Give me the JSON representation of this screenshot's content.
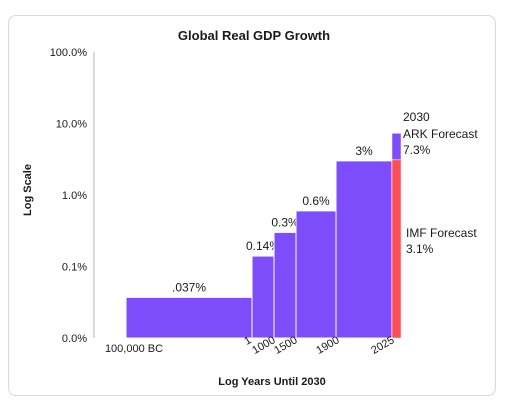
{
  "chart_data": {
    "type": "bar",
    "title": "Global Real GDP Growth",
    "xlabel": "Log Years Until 2030",
    "ylabel": "Log Scale",
    "y_scale": "log",
    "ylim": [
      "0.0%",
      "100.0%"
    ],
    "y_ticks": [
      "100.0%",
      "10.0%",
      "1.0%",
      "0.1%",
      "0.0%"
    ],
    "x_ticks": [
      "100,000 BC",
      "1",
      "1000",
      "1500",
      "1900",
      "2025"
    ],
    "periods": [
      {
        "from": "100,000 BC",
        "to": "1",
        "value": 0.037,
        "label": ".037%"
      },
      {
        "from": "1",
        "to": "1000",
        "value": 0.14,
        "label": "0.14%"
      },
      {
        "from": "1000",
        "to": "1500",
        "value": 0.3,
        "label": "0.3%"
      },
      {
        "from": "1500",
        "to": "1900",
        "value": 0.6,
        "label": "0.6%"
      },
      {
        "from": "1900",
        "to": "2025",
        "value": 3,
        "label": "3%"
      }
    ],
    "forecasts": {
      "year_label": "2030",
      "ark": {
        "name": "ARK Forecast",
        "value": 7.3,
        "label": "7.3%"
      },
      "imf": {
        "name": "IMF Forecast",
        "value": 3.1,
        "label": "3.1%"
      }
    },
    "grid": false,
    "colors": {
      "bar": "#7d4dfb",
      "imf": "#fc4e57",
      "axis": "#b7b2c8",
      "text": "#1a1a1a"
    }
  }
}
